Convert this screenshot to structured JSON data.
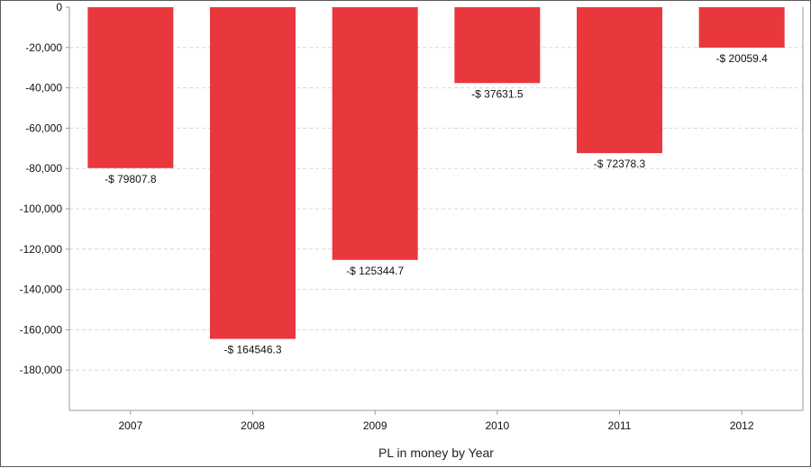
{
  "chart_data": {
    "type": "bar",
    "categories": [
      "2007",
      "2008",
      "2009",
      "2010",
      "2011",
      "2012"
    ],
    "values": [
      -79807.8,
      -164546.3,
      -125344.7,
      -37631.5,
      -72378.3,
      -20059.4
    ],
    "data_labels": [
      "-$ 79807.8",
      "-$ 164546.3",
      "-$ 125344.7",
      "-$ 37631.5",
      "-$ 72378.3",
      "-$ 20059.4"
    ],
    "title": "",
    "xlabel": "PL in money by Year",
    "ylabel": "",
    "ylim": [
      -200000,
      0
    ],
    "yticks": [
      0,
      -20000,
      -40000,
      -60000,
      -80000,
      -100000,
      -120000,
      -140000,
      -160000,
      -180000
    ],
    "ytick_labels": [
      "0",
      "-20,000",
      "-40,000",
      "-60,000",
      "-80,000",
      "-100,000",
      "-120,000",
      "-140,000",
      "-160,000",
      "-180,000"
    ],
    "grid": true,
    "legend": "none",
    "bar_color": "#e8383d",
    "grid_color": "#d8d8d8"
  }
}
